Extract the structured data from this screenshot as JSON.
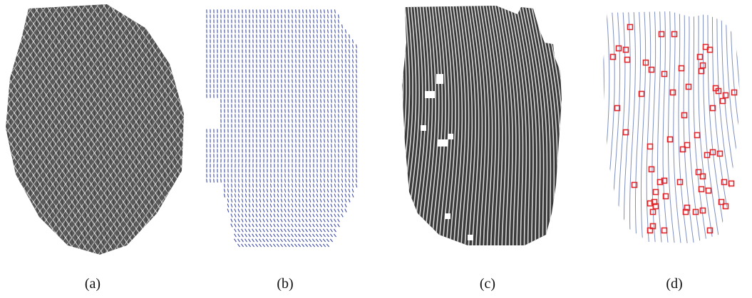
{
  "figure": {
    "panels": [
      {
        "id": "a",
        "caption": "(a)",
        "content": "fingerprint-image",
        "colors": {
          "ink": "#111111",
          "paper": "#ffffff"
        }
      },
      {
        "id": "b",
        "caption": "(b)",
        "content": "orientation-field",
        "colors": {
          "ink": "#3b4aa8"
        }
      },
      {
        "id": "c",
        "caption": "(c)",
        "content": "enhanced-ridge-image",
        "colors": {
          "dark": "#3a3a3a",
          "light": "#d8d8d8"
        }
      },
      {
        "id": "d",
        "caption": "(d)",
        "content": "thinned-ridges-with-minutiae",
        "colors": {
          "ridge": "#7e8fc0",
          "minutia": "#e0252b"
        }
      }
    ]
  }
}
